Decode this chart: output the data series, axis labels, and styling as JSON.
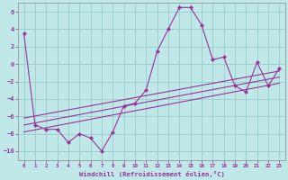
{
  "title": "",
  "xlabel": "Windchill (Refroidissement éolien,°C)",
  "ylabel": "",
  "background_color": "#c0e8e8",
  "grid_color": "#99cccc",
  "line_color": "#993399",
  "xlim": [
    -0.5,
    23.5
  ],
  "ylim": [
    -11,
    7
  ],
  "xticks": [
    0,
    1,
    2,
    3,
    4,
    5,
    6,
    7,
    8,
    9,
    10,
    11,
    12,
    13,
    14,
    15,
    16,
    17,
    18,
    19,
    20,
    21,
    22,
    23
  ],
  "yticks": [
    -10,
    -8,
    -6,
    -4,
    -2,
    0,
    2,
    4,
    6
  ],
  "curve1_x": [
    0,
    1,
    2,
    3,
    4,
    5,
    6,
    7,
    8,
    9,
    10,
    11,
    12,
    13,
    14,
    15,
    16,
    17,
    18,
    19,
    20,
    21,
    22,
    23
  ],
  "curve1_y": [
    3.5,
    -7.0,
    -7.5,
    -7.5,
    -9.0,
    -8.0,
    -8.5,
    -10.0,
    -7.8,
    -4.8,
    -4.5,
    -3.0,
    1.5,
    4.0,
    6.5,
    6.5,
    4.5,
    0.5,
    0.8,
    -2.5,
    -3.2,
    0.2,
    -2.5,
    -0.5
  ],
  "line1_x": [
    0,
    23
  ],
  "line1_y": [
    -7.0,
    -1.5
  ],
  "line2_x": [
    0,
    23
  ],
  "line2_y": [
    -7.8,
    -2.2
  ],
  "line3_x": [
    0,
    23
  ],
  "line3_y": [
    -6.2,
    -0.8
  ]
}
